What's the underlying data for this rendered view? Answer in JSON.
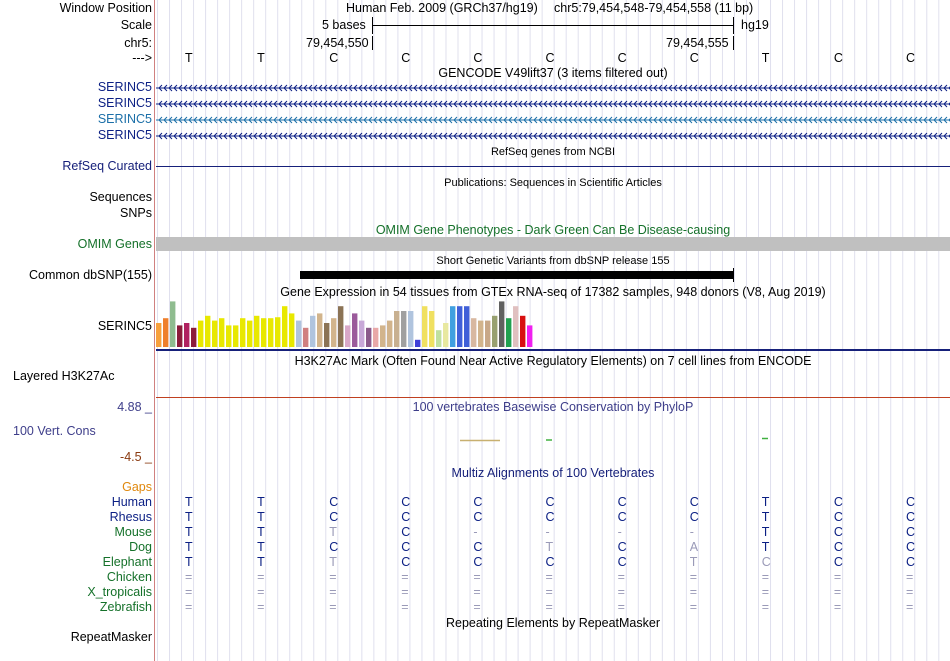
{
  "position": {
    "window_label": "Window Position",
    "scale_label": "Scale",
    "chrom_label": "chr5:",
    "arrow_label": "--->",
    "assembly": "Human Feb. 2009 (GRCh37/hg19)",
    "range": "chr5:79,454,548-79,454,558 (11 bp)",
    "scale_text": "5 bases",
    "db": "hg19",
    "coord_left": "79,454,550",
    "coord_right": "79,454,555"
  },
  "sequence": [
    "T",
    "T",
    "C",
    "C",
    "C",
    "C",
    "C",
    "C",
    "T",
    "C",
    "C"
  ],
  "gencode": {
    "title": "GENCODE V49lift37 (3 items filtered out)",
    "genes": [
      "SERINC5",
      "SERINC5",
      "SERINC5",
      "SERINC5"
    ],
    "colors": [
      "#0b1f84",
      "#0b1f84",
      "#1b6fa8",
      "#0b1f84"
    ]
  },
  "refseq": {
    "title": "RefSeq genes from NCBI",
    "label": "RefSeq Curated"
  },
  "pubs": {
    "title": "Publications: Sequences in Scientific Articles",
    "label1": "Sequences",
    "label2": "SNPs"
  },
  "omim": {
    "title": "OMIM Gene Phenotypes - Dark Green Can Be Disease-causing",
    "label": "OMIM Genes"
  },
  "dbsnp": {
    "title": "Short Genetic Variants from dbSNP release 155",
    "label": "Common dbSNP(155)"
  },
  "gtex": {
    "title": "Gene Expression in 54 tissues from GTEx RNA-seq of 17382 samples, 948 donors (V8, Aug 2019)",
    "label": "SERINC5",
    "values": [
      0.5,
      0.6,
      0.95,
      0.45,
      0.5,
      0.4,
      0.55,
      0.65,
      0.55,
      0.6,
      0.45,
      0.45,
      0.6,
      0.55,
      0.65,
      0.6,
      0.6,
      0.62,
      0.85,
      0.7,
      0.55,
      0.4,
      0.65,
      0.7,
      0.5,
      0.6,
      0.85,
      0.45,
      0.7,
      0.55,
      0.4,
      0.4,
      0.45,
      0.55,
      0.75,
      0.75,
      0.75,
      0.15,
      0.85,
      0.75,
      0.35,
      0.5,
      0.85,
      0.85,
      0.85,
      0.6,
      0.55,
      0.55,
      0.65,
      0.95,
      0.6,
      0.85,
      0.65,
      0.45
    ],
    "colors": [
      "#f7a03c",
      "#ef7f2c",
      "#8fbc8f",
      "#8b1c3a",
      "#b02060",
      "#8b1c3a",
      "#e8e800",
      "#e8e800",
      "#e8e800",
      "#e8e800",
      "#e8e800",
      "#e8e800",
      "#e8e800",
      "#e8e800",
      "#e8e800",
      "#e8e800",
      "#e8e800",
      "#e8e800",
      "#e8e800",
      "#e8e800",
      "#b0c4de",
      "#d08080",
      "#b0c4de",
      "#d2b48c",
      "#8b7355",
      "#d2b48c",
      "#8b7355",
      "#d8a8c8",
      "#9b5a9b",
      "#c8a8d8",
      "#8b5a8b",
      "#e8a8a8",
      "#d2b48c",
      "#d2b48c",
      "#c8b090",
      "#a0a0a0",
      "#b0c4de",
      "#4040d8",
      "#f0e060",
      "#f0e060",
      "#c0e0a0",
      "#e8e8a0",
      "#40a0e0",
      "#4060d8",
      "#4060d8",
      "#d8b8a0",
      "#d2b48c",
      "#c8a888",
      "#98a070",
      "#606060",
      "#20a050",
      "#e0c0c0",
      "#d81010",
      "#f020f0"
    ]
  },
  "h3k27ac": {
    "title": "H3K27Ac Mark (Often Found Near Active Regulatory Elements) on 7 cell lines from ENCODE",
    "label": "Layered H3K27Ac"
  },
  "phylop": {
    "title": "100 vertebrates Basewise Conservation by PhyloP",
    "label": "100 Vert. Cons",
    "max": "4.88 _",
    "min": "-4.5 _"
  },
  "multiz": {
    "title": "Multiz Alignments of 100 Vertebrates",
    "gaps_label": "Gaps",
    "species": [
      {
        "name": "Human",
        "color": "#0b1f84",
        "bases": [
          "T",
          "T",
          "C",
          "C",
          "C",
          "C",
          "C",
          "C",
          "T",
          "C",
          "C"
        ],
        "dim": []
      },
      {
        "name": "Rhesus",
        "color": "#0b1f84",
        "bases": [
          "T",
          "T",
          "C",
          "C",
          "C",
          "C",
          "C",
          "C",
          "T",
          "C",
          "C"
        ],
        "dim": []
      },
      {
        "name": "Mouse",
        "color": "#15712a",
        "bases": [
          "T",
          "T",
          "T",
          "C",
          "-",
          "-",
          "-",
          "-",
          "T",
          "C",
          "C"
        ],
        "dim": [
          2,
          4,
          5,
          6,
          7
        ]
      },
      {
        "name": "Dog",
        "color": "#15712a",
        "bases": [
          "T",
          "T",
          "C",
          "C",
          "C",
          "T",
          "C",
          "A",
          "T",
          "C",
          "C"
        ],
        "dim": [
          5,
          7
        ]
      },
      {
        "name": "Elephant",
        "color": "#15712a",
        "bases": [
          "T",
          "T",
          "T",
          "C",
          "C",
          "C",
          "C",
          "T",
          "C",
          "C",
          "C"
        ],
        "dim": [
          2,
          7,
          8
        ]
      },
      {
        "name": "Chicken",
        "color": "#15712a",
        "bases": [
          "=",
          "=",
          "=",
          "=",
          "=",
          "=",
          "=",
          "=",
          "=",
          "=",
          "="
        ],
        "dim": [
          0,
          1,
          2,
          3,
          4,
          5,
          6,
          7,
          8,
          9,
          10
        ]
      },
      {
        "name": "X_tropicalis",
        "color": "#15712a",
        "bases": [
          "=",
          "=",
          "=",
          "=",
          "=",
          "=",
          "=",
          "=",
          "=",
          "=",
          "="
        ],
        "dim": [
          0,
          1,
          2,
          3,
          4,
          5,
          6,
          7,
          8,
          9,
          10
        ]
      },
      {
        "name": "Zebrafish",
        "color": "#15712a",
        "bases": [
          "=",
          "=",
          "=",
          "=",
          "=",
          "=",
          "=",
          "=",
          "=",
          "=",
          "="
        ],
        "dim": [
          0,
          1,
          2,
          3,
          4,
          5,
          6,
          7,
          8,
          9,
          10
        ]
      }
    ]
  },
  "repeatmasker": {
    "title": "Repeating Elements by RepeatMasker",
    "label": "RepeatMasker"
  }
}
